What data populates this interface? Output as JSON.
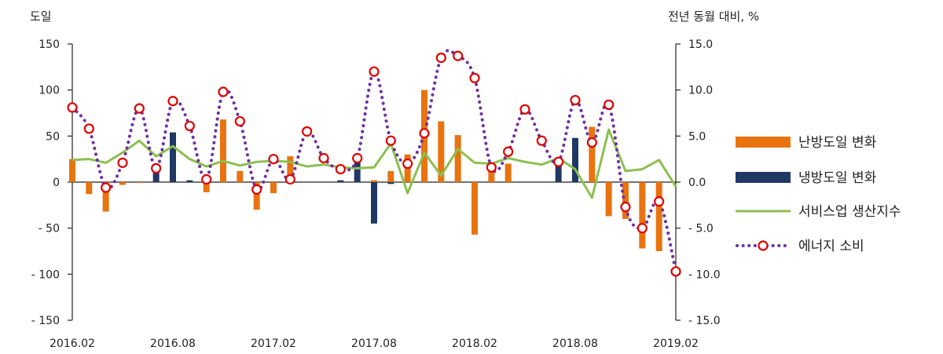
{
  "chart_data": {
    "type": "bar",
    "left_axis": {
      "title": "도일",
      "ylim": [
        -150,
        150
      ],
      "ticks": [
        150,
        100,
        50,
        0,
        -50,
        -100,
        -150
      ],
      "tick_labels": [
        "150",
        "100",
        "50",
        "0",
        "- 50",
        "- 100",
        "- 150"
      ]
    },
    "right_axis": {
      "title": "전년 동월 대비, %",
      "ylim": [
        -15,
        15
      ],
      "ticks": [
        15,
        10,
        5,
        0,
        -5,
        -10,
        -15
      ],
      "tick_labels": [
        "15.0",
        "10.0",
        "5.0",
        "0.0",
        "- 5.0",
        "- 10.0",
        "- 15.0"
      ]
    },
    "x_tick_labels": [
      "2016.02",
      "2016.08",
      "2017.02",
      "2017.08",
      "2018.02",
      "2018.08",
      "2019.02"
    ],
    "x": [
      "2016.02",
      "2016.03",
      "2016.04",
      "2016.05",
      "2016.06",
      "2016.07",
      "2016.08",
      "2016.09",
      "2016.10",
      "2016.11",
      "2016.12",
      "2017.01",
      "2017.02",
      "2017.03",
      "2017.04",
      "2017.05",
      "2017.06",
      "2017.07",
      "2017.08",
      "2017.09",
      "2017.10",
      "2017.11",
      "2017.12",
      "2018.01",
      "2018.02",
      "2018.03",
      "2018.04",
      "2018.05",
      "2018.06",
      "2018.07",
      "2018.08",
      "2018.09",
      "2018.10",
      "2018.11",
      "2018.12",
      "2019.01",
      "2019.02"
    ],
    "legend_position": "right",
    "series": [
      {
        "name": "난방도일 변화",
        "type": "bar",
        "axis": "left",
        "color": "#E8730F",
        "values": [
          25,
          -13,
          -32,
          -3,
          -1,
          0,
          0,
          0,
          -11,
          68,
          12,
          -30,
          -12,
          28,
          0,
          0,
          0,
          0,
          2,
          12,
          30,
          100,
          66,
          51,
          -57,
          15,
          20,
          0,
          0,
          0,
          0,
          60,
          -37,
          -40,
          -72,
          -75,
          0
        ]
      },
      {
        "name": "냉방도일 변화",
        "type": "bar",
        "axis": "left",
        "color": "#1F3864",
        "values": [
          0,
          0,
          0,
          0,
          0,
          15,
          54,
          2,
          0,
          0,
          0,
          0,
          0,
          0,
          0,
          0,
          2,
          23,
          -45,
          -2,
          0,
          0,
          0,
          0,
          0,
          0,
          0,
          0,
          0,
          22,
          48,
          0,
          0,
          0,
          0,
          0,
          0
        ]
      },
      {
        "name": "서비스업 생산지수",
        "type": "line",
        "axis": "right",
        "color": "#8CBF4F",
        "values": [
          2.4,
          2.5,
          2.1,
          3.2,
          4.5,
          2.8,
          3.9,
          2.5,
          1.7,
          2.3,
          1.8,
          2.2,
          2.3,
          2.2,
          1.7,
          1.9,
          1.6,
          1.5,
          1.6,
          4.2,
          -1.2,
          3.2,
          0.7,
          3.6,
          2.1,
          2.0,
          2.6,
          2.2,
          1.9,
          2.6,
          1.4,
          -1.7,
          5.7,
          1.2,
          1.4,
          2.4,
          -0.5
        ]
      },
      {
        "name": "에너지 소비",
        "type": "line-dotted-markers",
        "axis": "right",
        "color": "#7030A0",
        "marker_color": "#E00000",
        "values": [
          8.1,
          5.8,
          -0.6,
          2.1,
          8.0,
          1.5,
          8.8,
          6.1,
          0.3,
          9.8,
          6.6,
          -0.8,
          2.5,
          0.3,
          5.5,
          2.6,
          1.4,
          2.6,
          12.0,
          4.5,
          2.0,
          5.3,
          13.5,
          13.7,
          11.3,
          1.6,
          3.3,
          7.9,
          4.5,
          2.2,
          8.9,
          4.3,
          8.4,
          -2.7,
          -5.0,
          -2.1,
          -9.7
        ]
      }
    ]
  }
}
